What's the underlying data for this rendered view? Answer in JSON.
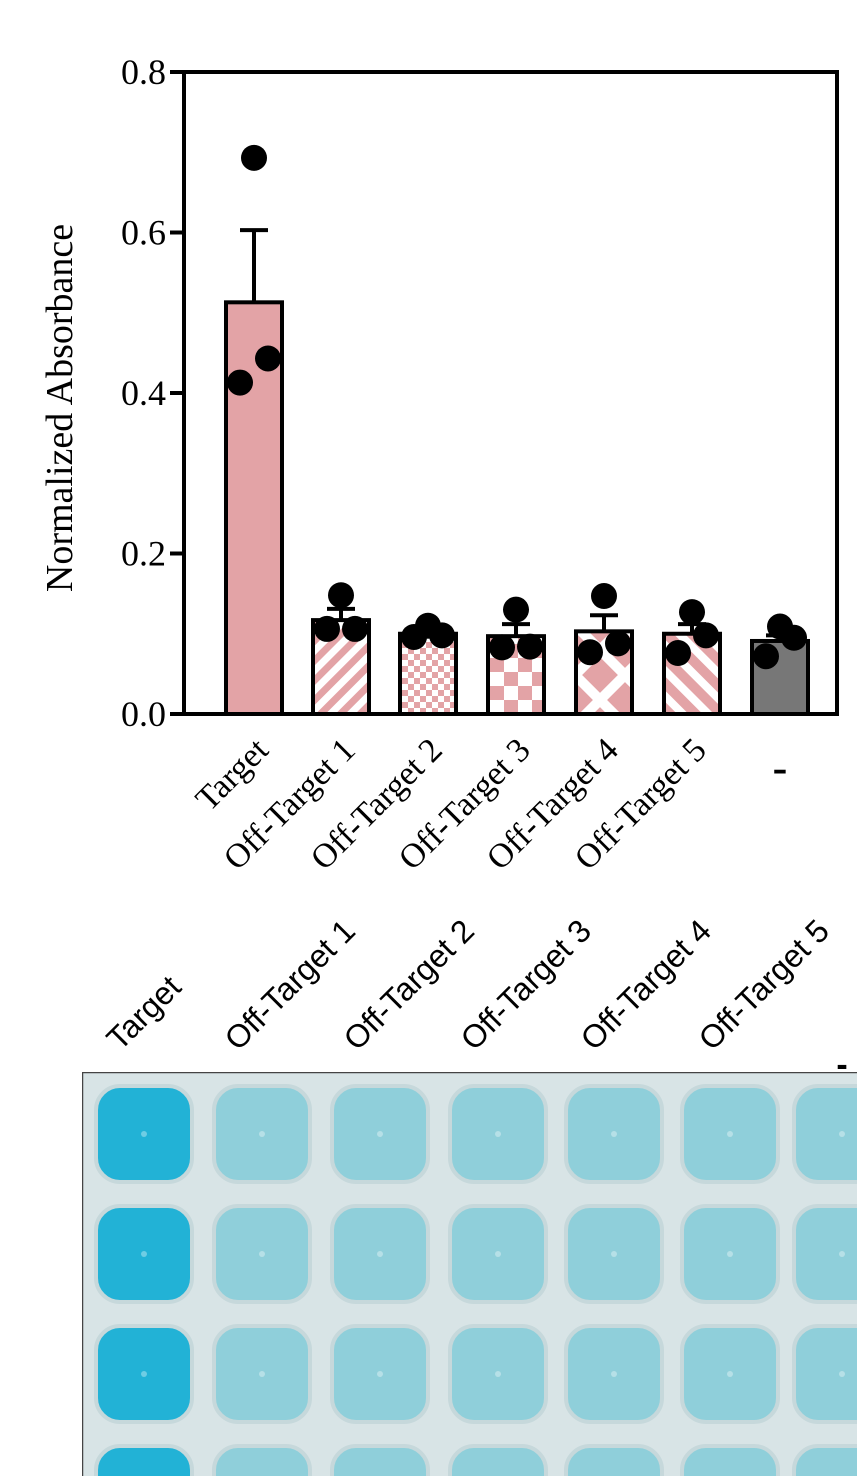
{
  "chart_data": {
    "type": "bar",
    "ylabel": "Normalized Absorbance",
    "ylim": [
      0,
      0.8
    ],
    "yticks": [
      "0.0",
      "0.2",
      "0.4",
      "0.6",
      "0.8"
    ],
    "categories": [
      "Target",
      "Off-Target 1",
      "Off-Target 2",
      "Off-Target 3",
      "Off-Target 4",
      "Off-Target 5",
      "-"
    ],
    "values": [
      0.513,
      0.117,
      0.1,
      0.097,
      0.103,
      0.1,
      0.091
    ],
    "errors": [
      0.09,
      0.014,
      0.006,
      0.015,
      0.02,
      0.012,
      0.007
    ],
    "points": [
      [
        0.693,
        0.443,
        0.413
      ],
      [
        0.148,
        0.106,
        0.106
      ],
      [
        0.11,
        0.098,
        0.096
      ],
      [
        0.13,
        0.084,
        0.083
      ],
      [
        0.147,
        0.088,
        0.077
      ],
      [
        0.127,
        0.098,
        0.076
      ],
      [
        0.109,
        0.095,
        0.072
      ]
    ],
    "bar_colors": [
      "#e3a3a6",
      "#e3a3a6",
      "#e3a3a6",
      "#e3a3a6",
      "#e3a3a6",
      "#e3a3a6",
      "#777777"
    ],
    "bar_patterns": [
      "solid",
      "diagonal-stripes",
      "small-checker",
      "large-checker",
      "cross",
      "wide-diagonal-stripes",
      "solid"
    ],
    "grid": false,
    "legend": false
  },
  "plate": {
    "labels": [
      "Target",
      "Off-Target 1",
      "Off-Target 2",
      "Off-Target 3",
      "Off-Target 4",
      "Off-Target 5",
      "-"
    ],
    "well_colors": {
      "target": "#22b2d6",
      "other": "#8fcfda",
      "background": "#d8e4e6"
    }
  }
}
